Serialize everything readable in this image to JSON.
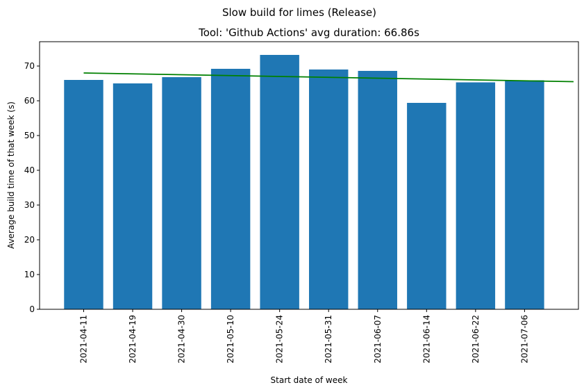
{
  "chart_data": {
    "type": "bar",
    "suptitle": "Slow build for limes (Release)",
    "title": "Tool: 'Github Actions' avg duration: 66.86s",
    "xlabel": "Start date of week",
    "ylabel": "Average build time of that week (s)",
    "categories": [
      "2021-04-11",
      "2021-04-19",
      "2021-04-30",
      "2021-05-10",
      "2021-05-24",
      "2021-05-31",
      "2021-06-07",
      "2021-06-14",
      "2021-06-22",
      "2021-07-06"
    ],
    "values": [
      66.0,
      65.0,
      66.8,
      69.2,
      73.2,
      69.0,
      68.6,
      59.4,
      65.3,
      65.9
    ],
    "ylim": [
      0,
      77
    ],
    "yticks": [
      0,
      10,
      20,
      30,
      40,
      50,
      60,
      70
    ],
    "bar_color": "#1f77b4",
    "trend_line": {
      "color": "#008000",
      "start": 68.0,
      "end": 65.5
    },
    "grid": false,
    "legend": "none"
  }
}
